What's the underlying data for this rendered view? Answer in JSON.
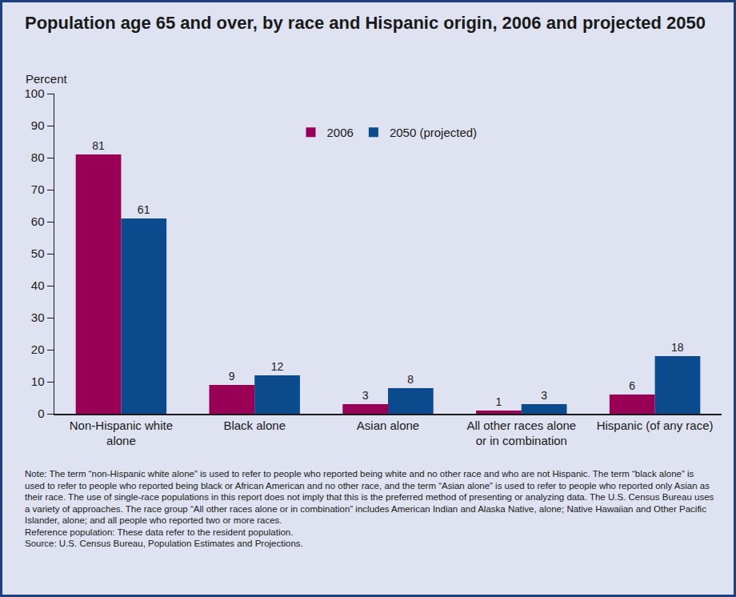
{
  "chart_data": {
    "type": "bar",
    "title": "Population age 65 and over, by race and Hispanic origin, 2006 and projected 2050",
    "ylabel": "Percent",
    "categories": [
      "Non-Hispanic white alone",
      "Black alone",
      "Asian alone",
      "All other races alone or in combination",
      "Hispanic (of any race)"
    ],
    "series": [
      {
        "name": "2006",
        "color": "#990055",
        "values": [
          81,
          9,
          3,
          1,
          6
        ]
      },
      {
        "name": "2050 (projected)",
        "color": "#0b4a8c",
        "values": [
          61,
          12,
          8,
          3,
          18
        ]
      }
    ],
    "ylim": [
      0,
      100
    ],
    "yticks": [
      0,
      10,
      20,
      30,
      40,
      50,
      60,
      70,
      80,
      90,
      100
    ],
    "grid": false,
    "legend": "top",
    "data_labels": true,
    "notes": [
      "Note: The term “non-Hispanic white alone” is used to refer to people who reported being white and no other race and who are not Hispanic. The term “black alone” is used to refer to people who reported being black or African American and no other race, and the term “Asian alone” is used to refer to people who reported only Asian as their race.  The use of single-race populations in this report does not imply that this is the preferred method of presenting or analyzing data. The U.S. Census Bureau uses a variety of approaches. The race group “All other races alone or in combination” includes American Indian and Alaska Native, alone; Native Hawaiian and Other Pacific Islander, alone; and all people who reported two or more races.",
      "Reference population: These data refer to the resident population.",
      "Source: U.S. Census Bureau, Population Estimates and Projections."
    ]
  }
}
